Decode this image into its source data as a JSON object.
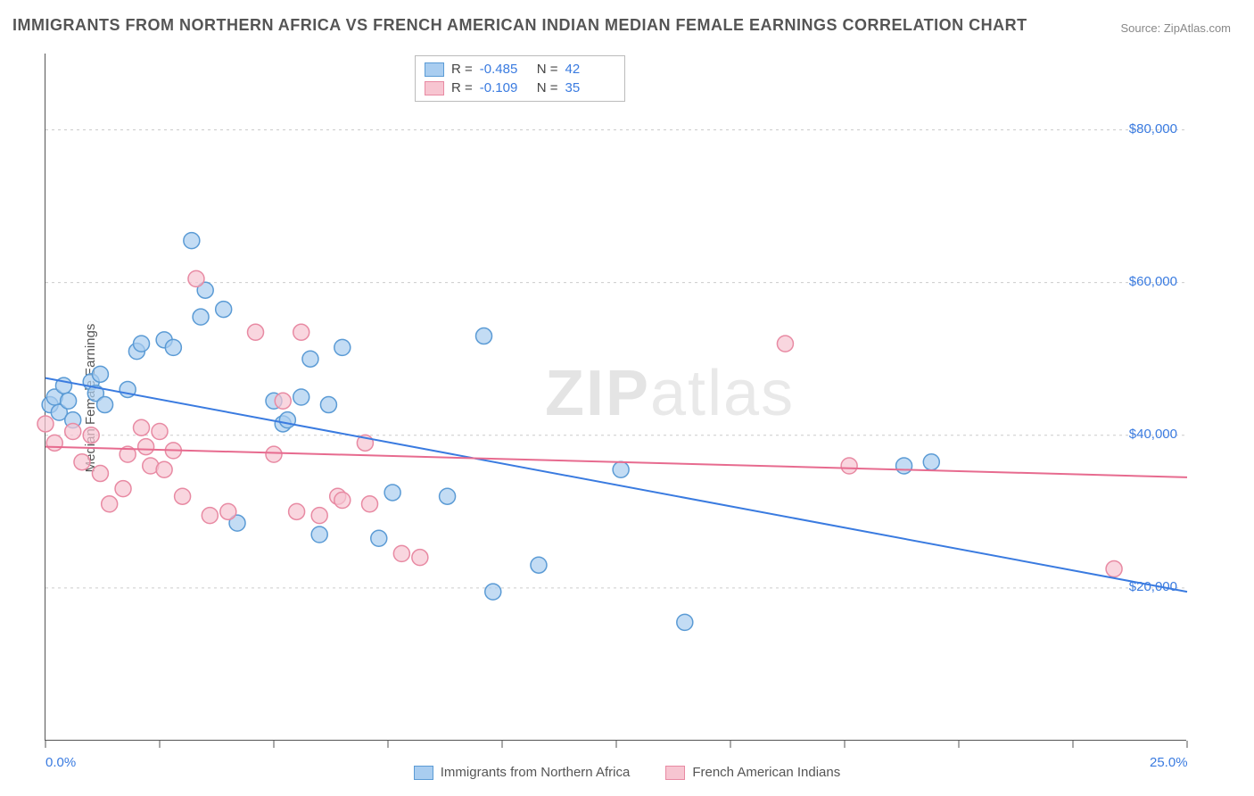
{
  "title": "IMMIGRANTS FROM NORTHERN AFRICA VS FRENCH AMERICAN INDIAN MEDIAN FEMALE EARNINGS CORRELATION CHART",
  "source": "Source: ZipAtlas.com",
  "ylabel": "Median Female Earnings",
  "watermark_a": "ZIP",
  "watermark_b": "atlas",
  "chart": {
    "type": "scatter",
    "xlim": [
      0,
      25
    ],
    "ylim": [
      0,
      90000
    ],
    "xticks": [
      0,
      2.5,
      5,
      7.5,
      10,
      12.5,
      15,
      17.5,
      20,
      22.5,
      25
    ],
    "xtick_labels": {
      "0": "0.0%",
      "25": "25.0%"
    },
    "yticks": [
      20000,
      40000,
      60000,
      80000
    ],
    "ytick_labels": [
      "$20,000",
      "$40,000",
      "$60,000",
      "$80,000"
    ],
    "grid_color": "#cccccc",
    "background_color": "#ffffff",
    "marker_radius": 9,
    "marker_stroke_width": 1.5,
    "line_width": 2,
    "series": [
      {
        "name": "Immigrants from Northern Africa",
        "fill": "#a9cdf0",
        "stroke": "#5b9bd5",
        "line_color": "#3a7be0",
        "R": "-0.485",
        "N": "42",
        "trend": {
          "x1": 0,
          "y1": 47500,
          "x2": 25,
          "y2": 19500
        },
        "points": [
          [
            0.1,
            44000
          ],
          [
            0.2,
            45000
          ],
          [
            0.3,
            43000
          ],
          [
            0.4,
            46500
          ],
          [
            0.5,
            44500
          ],
          [
            0.6,
            42000
          ],
          [
            1.0,
            47000
          ],
          [
            1.1,
            45500
          ],
          [
            1.2,
            48000
          ],
          [
            1.3,
            44000
          ],
          [
            1.8,
            46000
          ],
          [
            2.0,
            51000
          ],
          [
            2.1,
            52000
          ],
          [
            2.6,
            52500
          ],
          [
            2.8,
            51500
          ],
          [
            3.2,
            65500
          ],
          [
            3.4,
            55500
          ],
          [
            3.5,
            59000
          ],
          [
            3.9,
            56500
          ],
          [
            4.2,
            28500
          ],
          [
            5.0,
            44500
          ],
          [
            5.2,
            41500
          ],
          [
            5.3,
            42000
          ],
          [
            5.6,
            45000
          ],
          [
            5.8,
            50000
          ],
          [
            6.0,
            27000
          ],
          [
            6.2,
            44000
          ],
          [
            6.5,
            51500
          ],
          [
            7.3,
            26500
          ],
          [
            7.6,
            32500
          ],
          [
            8.8,
            32000
          ],
          [
            9.6,
            53000
          ],
          [
            9.8,
            19500
          ],
          [
            10.8,
            23000
          ],
          [
            12.6,
            35500
          ],
          [
            14.0,
            15500
          ],
          [
            18.8,
            36000
          ],
          [
            19.4,
            36500
          ]
        ]
      },
      {
        "name": "French American Indians",
        "fill": "#f7c5d1",
        "stroke": "#e88aa3",
        "line_color": "#e76b8f",
        "R": "-0.109",
        "N": "35",
        "trend": {
          "x1": 0,
          "y1": 38500,
          "x2": 25,
          "y2": 34500
        },
        "points": [
          [
            0.0,
            41500
          ],
          [
            0.2,
            39000
          ],
          [
            0.6,
            40500
          ],
          [
            0.8,
            36500
          ],
          [
            1.0,
            40000
          ],
          [
            1.2,
            35000
          ],
          [
            1.4,
            31000
          ],
          [
            1.7,
            33000
          ],
          [
            1.8,
            37500
          ],
          [
            2.1,
            41000
          ],
          [
            2.2,
            38500
          ],
          [
            2.3,
            36000
          ],
          [
            2.5,
            40500
          ],
          [
            2.6,
            35500
          ],
          [
            2.8,
            38000
          ],
          [
            3.0,
            32000
          ],
          [
            3.3,
            60500
          ],
          [
            3.6,
            29500
          ],
          [
            4.0,
            30000
          ],
          [
            4.6,
            53500
          ],
          [
            5.0,
            37500
          ],
          [
            5.2,
            44500
          ],
          [
            5.5,
            30000
          ],
          [
            5.6,
            53500
          ],
          [
            6.0,
            29500
          ],
          [
            6.4,
            32000
          ],
          [
            6.5,
            31500
          ],
          [
            7.0,
            39000
          ],
          [
            7.1,
            31000
          ],
          [
            7.8,
            24500
          ],
          [
            8.2,
            24000
          ],
          [
            16.2,
            52000
          ],
          [
            17.6,
            36000
          ],
          [
            23.4,
            22500
          ]
        ]
      }
    ],
    "bottom_legend": [
      {
        "label": "Immigrants from Northern Africa",
        "fill": "#a9cdf0",
        "stroke": "#5b9bd5"
      },
      {
        "label": "French American Indians",
        "fill": "#f7c5d1",
        "stroke": "#e88aa3"
      }
    ]
  }
}
